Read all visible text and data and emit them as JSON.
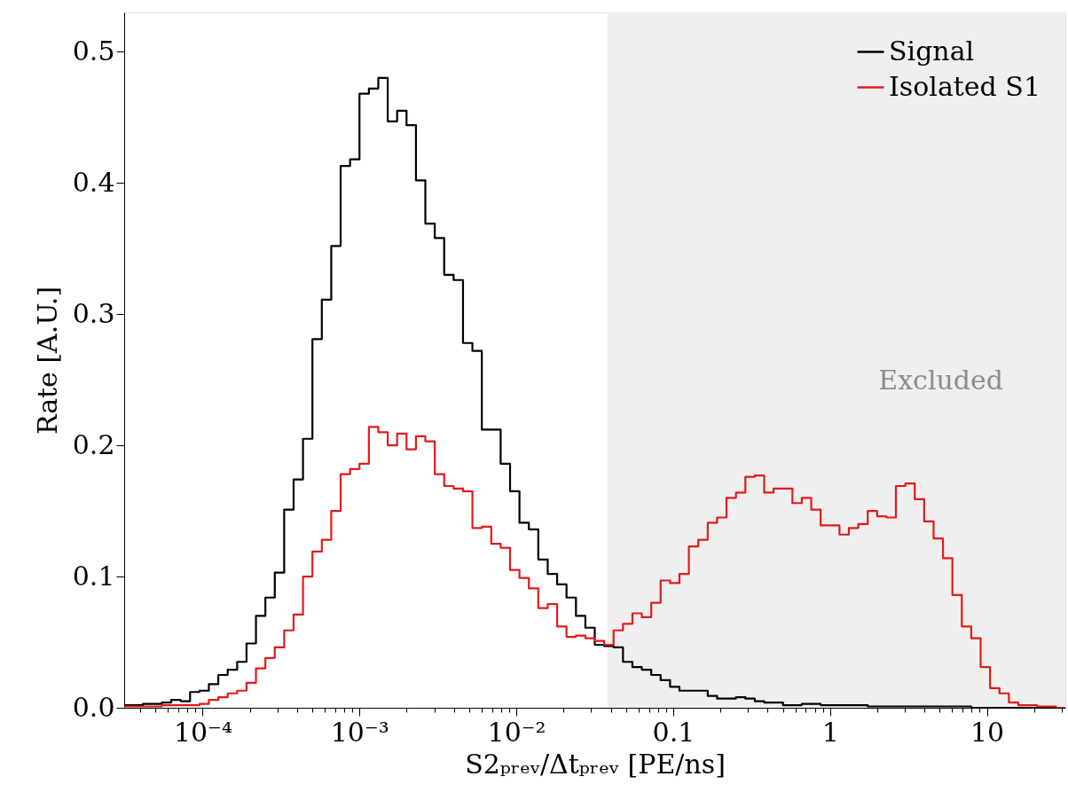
{
  "chart_data": {
    "type": "histogram",
    "xlabel": "S2ₚᵣₑᵥ/Δtₚᵣₑᵥ [PE/ns]",
    "ylabel": "Rate [A.U.]",
    "log": "x",
    "grid": false,
    "legend": "top right",
    "bins": [
      3.162e-05,
      3.631e-05,
      4.169e-05,
      4.786e-05,
      5.495e-05,
      6.31e-05,
      7.244e-05,
      8.318e-05,
      9.55e-05,
      0.0001096,
      0.0001259,
      0.0001445,
      0.000166,
      0.0001905,
      0.0002188,
      0.0002512,
      0.0002884,
      0.0003311,
      0.0003802,
      0.0004365,
      0.0005012,
      0.0005754,
      0.0006607,
      0.0007586,
      0.000871,
      0.001,
      0.001148,
      0.001318,
      0.001514,
      0.001738,
      0.001995,
      0.002291,
      0.00263,
      0.00302,
      0.003467,
      0.003981,
      0.004571,
      0.005248,
      0.006026,
      0.006918,
      0.007943,
      0.00912,
      0.01047,
      0.01202,
      0.0138,
      0.01585,
      0.0182,
      0.02089,
      0.02399,
      0.02754,
      0.03162,
      0.03631,
      0.04169,
      0.04786,
      0.05495,
      0.0631,
      0.07244,
      0.08318,
      0.0955,
      0.1096,
      0.1259,
      0.1445,
      0.166,
      0.1905,
      0.2188,
      0.2512,
      0.2884,
      0.3311,
      0.3802,
      0.4365,
      0.5012,
      0.5754,
      0.6607,
      0.7586,
      0.871,
      1.0,
      1.148,
      1.318,
      1.514,
      1.738,
      1.995,
      2.291,
      2.63,
      3.02,
      3.467,
      3.981,
      4.571,
      5.248,
      6.026,
      6.918,
      7.943,
      9.12,
      10.47,
      12.02,
      13.8,
      15.85,
      18.2,
      20.89,
      23.99,
      27.54,
      31.62
    ],
    "series": [
      {
        "name": "Signal",
        "color": "#000000",
        "values": [
          0.002,
          0.002,
          0.003,
          0.003,
          0.004,
          0.006,
          0.005,
          0.012,
          0.013,
          0.018,
          0.025,
          0.029,
          0.035,
          0.049,
          0.07,
          0.084,
          0.103,
          0.151,
          0.174,
          0.205,
          0.281,
          0.311,
          0.352,
          0.413,
          0.418,
          0.468,
          0.472,
          0.48,
          0.447,
          0.455,
          0.444,
          0.402,
          0.369,
          0.358,
          0.33,
          0.326,
          0.278,
          0.272,
          0.212,
          0.212,
          0.186,
          0.165,
          0.141,
          0.136,
          0.113,
          0.102,
          0.094,
          0.084,
          0.07,
          0.061,
          0.048,
          0.047,
          0.046,
          0.035,
          0.031,
          0.029,
          0.025,
          0.021,
          0.016,
          0.013,
          0.013,
          0.013,
          0.009,
          0.007,
          0.007,
          0.008,
          0.007,
          0.005,
          0.004,
          0.004,
          0.002,
          0.002,
          0.003,
          0.003,
          0.002,
          0.002,
          0.002,
          0.002,
          0.002,
          0.001,
          0.001,
          0.001,
          0.001,
          0.001,
          0.001,
          0.001,
          0.001,
          0.001,
          0.001,
          0.001,
          0,
          0,
          0,
          0,
          0,
          0,
          0,
          0,
          0,
          0
        ]
      },
      {
        "name": "Isolated S1",
        "color": "#e31a1c",
        "values": [
          0.001,
          0.001,
          0.001,
          0.001,
          0.002,
          0.002,
          0.002,
          0.002,
          0.003,
          0.006,
          0.008,
          0.011,
          0.013,
          0.019,
          0.03,
          0.038,
          0.046,
          0.059,
          0.071,
          0.1,
          0.119,
          0.128,
          0.15,
          0.178,
          0.182,
          0.186,
          0.214,
          0.21,
          0.2,
          0.209,
          0.197,
          0.207,
          0.203,
          0.178,
          0.169,
          0.167,
          0.165,
          0.137,
          0.138,
          0.125,
          0.122,
          0.105,
          0.099,
          0.091,
          0.076,
          0.079,
          0.062,
          0.054,
          0.055,
          0.053,
          0.051,
          0.048,
          0.059,
          0.064,
          0.072,
          0.069,
          0.08,
          0.097,
          0.095,
          0.102,
          0.123,
          0.128,
          0.141,
          0.145,
          0.16,
          0.164,
          0.176,
          0.177,
          0.164,
          0.167,
          0.167,
          0.156,
          0.16,
          0.151,
          0.139,
          0.139,
          0.132,
          0.137,
          0.14,
          0.15,
          0.146,
          0.145,
          0.169,
          0.171,
          0.159,
          0.142,
          0.129,
          0.114,
          0.086,
          0.062,
          0.053,
          0.031,
          0.015,
          0.011,
          0.004,
          0.002,
          0.002,
          0.001,
          0.001,
          0
        ]
      }
    ],
    "xlim": [
      3.162e-05,
      31.62
    ],
    "xticks": [
      {
        "value": 4e-05,
        "label": null
      },
      {
        "value": 5e-05,
        "label": null
      },
      {
        "value": 6e-05,
        "label": null
      },
      {
        "value": 7e-05,
        "label": null
      },
      {
        "value": 8e-05,
        "label": null
      },
      {
        "value": 9e-05,
        "label": null
      },
      {
        "value": 0.0001,
        "label": "10⁻⁴"
      },
      {
        "value": 0.0002,
        "label": null
      },
      {
        "value": 0.0003,
        "label": null
      },
      {
        "value": 0.0004,
        "label": null
      },
      {
        "value": 0.0005,
        "label": null
      },
      {
        "value": 0.0006,
        "label": null
      },
      {
        "value": 0.0007,
        "label": null
      },
      {
        "value": 0.0008,
        "label": null
      },
      {
        "value": 0.0009,
        "label": null
      },
      {
        "value": 0.001,
        "label": "10⁻³"
      },
      {
        "value": 0.002,
        "label": null
      },
      {
        "value": 0.003,
        "label": null
      },
      {
        "value": 0.004,
        "label": null
      },
      {
        "value": 0.005,
        "label": null
      },
      {
        "value": 0.006,
        "label": null
      },
      {
        "value": 0.007,
        "label": null
      },
      {
        "value": 0.008,
        "label": null
      },
      {
        "value": 0.009,
        "label": null
      },
      {
        "value": 0.01,
        "label": "10⁻²"
      },
      {
        "value": 0.02,
        "label": null
      },
      {
        "value": 0.03,
        "label": null
      },
      {
        "value": 0.04,
        "label": null
      },
      {
        "value": 0.05,
        "label": null
      },
      {
        "value": 0.06,
        "label": null
      },
      {
        "value": 0.07,
        "label": null
      },
      {
        "value": 0.08,
        "label": null
      },
      {
        "value": 0.09,
        "label": null
      },
      0.1,
      {
        "value": 0.2,
        "label": null
      },
      {
        "value": 0.3,
        "label": null
      },
      {
        "value": 0.4,
        "label": null
      },
      {
        "value": 0.5,
        "label": null
      },
      {
        "value": 0.6,
        "label": null
      },
      {
        "value": 0.7,
        "label": null
      },
      {
        "value": 0.8,
        "label": null
      },
      {
        "value": 0.9,
        "label": null
      },
      1,
      {
        "value": 2,
        "label": null
      },
      {
        "value": 3,
        "label": null
      },
      {
        "value": 4,
        "label": null
      },
      {
        "value": 5,
        "label": null
      },
      {
        "value": 6,
        "label": null
      },
      {
        "value": 7,
        "label": null
      },
      {
        "value": 8,
        "label": null
      },
      {
        "value": 9,
        "label": null
      },
      10,
      {
        "value": 20,
        "label": null
      },
      {
        "value": 30,
        "label": null
      }
    ],
    "ylim": [
      0,
      0.53
    ],
    "yticks": [
      {
        "value": 0,
        "label": "0.0"
      },
      0.1,
      0.2,
      0.3,
      0.4,
      0.5
    ],
    "bands": [
      {
        "axis": "x",
        "from": 0.038,
        "to": 31.62,
        "label": "Excluded",
        "color": "#efefef"
      }
    ]
  }
}
